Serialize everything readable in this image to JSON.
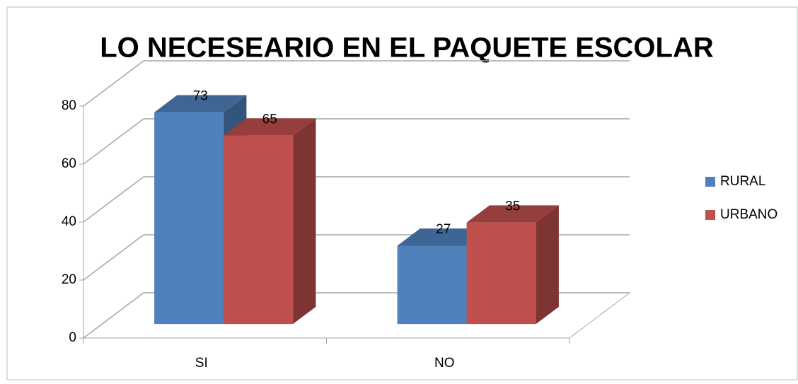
{
  "chart_data": {
    "type": "bar3d",
    "title": "LO NECESEARIO EN EL PAQUETE ESCOLAR",
    "categories": [
      "SI",
      "NO"
    ],
    "series": [
      {
        "name": "RURAL",
        "color": "#4f81bd",
        "values": [
          73,
          27
        ]
      },
      {
        "name": "URBANO",
        "color": "#c0504d",
        "values": [
          65,
          35
        ]
      }
    ],
    "ylim": [
      0,
      80
    ],
    "yticks": [
      0,
      20,
      40,
      60,
      80
    ],
    "grid": true,
    "legend": "right"
  }
}
